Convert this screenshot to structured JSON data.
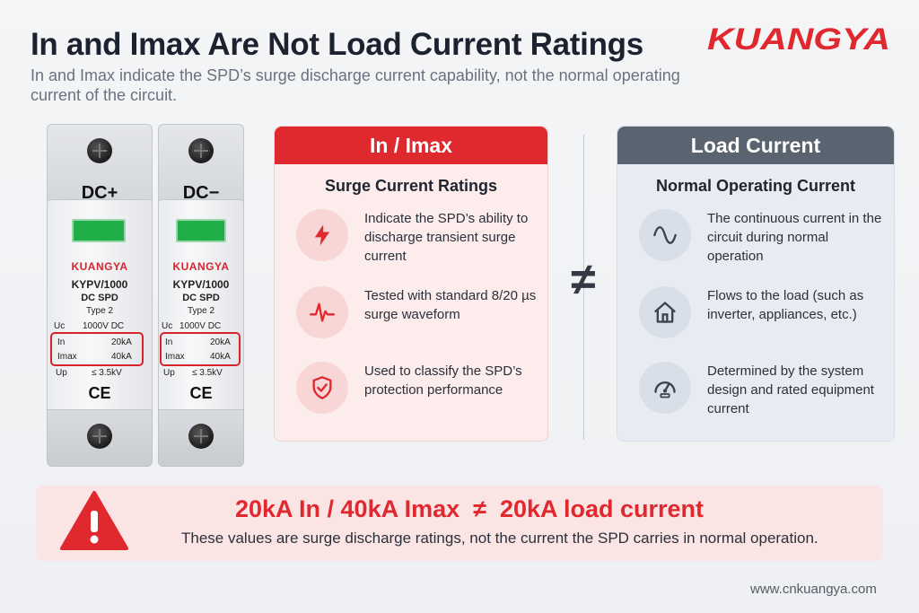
{
  "header": {
    "title": "In and Imax Are Not Load Current Ratings",
    "subtitle": "In and Imax indicate the SPD’s surge discharge current capability, not the normal operating current of the circuit.",
    "logo_text": "KUANGYA",
    "brand_color": "#e0282f"
  },
  "device": {
    "left": {
      "label": "DC+",
      "brand": "KUANGYA",
      "model": "KYPV/1000",
      "product": "DC SPD",
      "type": "Type 2",
      "uc_label": "Uc",
      "uc_value": "1000V DC",
      "in_label": "In",
      "in_value": "20kA",
      "imax_label": "Imax",
      "imax_value": "40kA",
      "up_label": "Up",
      "up_value": "≤ 3.5kV",
      "mark": "CE"
    },
    "right": {
      "label": "DC−",
      "brand": "KUANGYA",
      "model": "KYPV/1000",
      "product": "DC SPD",
      "type": "Type 2",
      "uc_label": "Uc",
      "uc_value": "1000V DC",
      "in_label": "In",
      "in_value": "20kA",
      "imax_label": "Imax",
      "imax_value": "40kA",
      "up_label": "Up",
      "up_value": "≤ 3.5kV",
      "mark": "CE"
    }
  },
  "surge_panel": {
    "title": "In / Imax",
    "subtitle": "Surge Current Ratings",
    "items": [
      {
        "icon": "lightning-icon",
        "text": "Indicate the SPD’s ability to discharge transient surge current"
      },
      {
        "icon": "waveform-icon",
        "text": "Tested with standard 8/20 µs surge waveform"
      },
      {
        "icon": "shield-check-icon",
        "text": "Used to classify the SPD’s protection performance"
      }
    ]
  },
  "load_panel": {
    "title": "Load Current",
    "subtitle": "Normal Operating Current",
    "items": [
      {
        "icon": "sine-wave-icon",
        "text": "The continuous current in the circuit during normal operation"
      },
      {
        "icon": "house-icon",
        "text": "Flows to the load (such as inverter, appliances, etc.)"
      },
      {
        "icon": "gauge-icon",
        "text": "Determined by the system design and rated equipment current"
      }
    ]
  },
  "comparison_symbol": "≠",
  "banner": {
    "icon": "warning-icon",
    "main": "20kA In / 40kA Imax  ≠  20kA load current",
    "sub": "These values are surge discharge ratings, not the current the SPD carries in normal operation."
  },
  "footer": {
    "url": "www.cnkuangya.com"
  }
}
